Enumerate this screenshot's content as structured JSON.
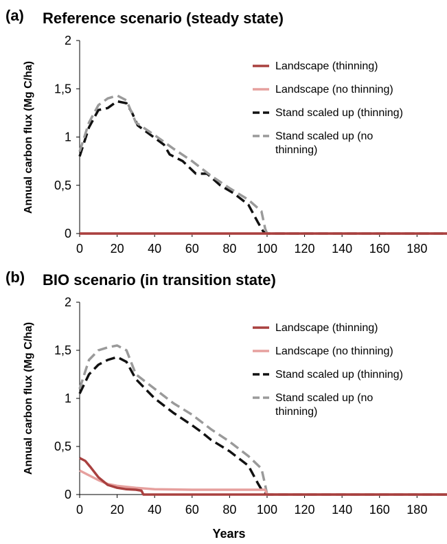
{
  "chart_data": [
    {
      "type": "line",
      "panel_label": "(a)",
      "title": "Reference scenario (steady state)",
      "ylabel": "Annual carbon flux (Mg C/ha)",
      "xlabel": "",
      "xlim": [
        0,
        196
      ],
      "ylim": [
        0,
        2
      ],
      "xticks": [
        0,
        20,
        40,
        60,
        80,
        100,
        120,
        140,
        160,
        180
      ],
      "yticks": [
        0,
        0.5,
        1,
        1.5,
        2
      ],
      "ytick_labels": [
        "0",
        "0,5",
        "1",
        "1,5",
        "2"
      ],
      "grid": false,
      "legend_position": "top-right",
      "series": [
        {
          "name": "Landscape (thinning)",
          "color": "#a9403f",
          "dash": "solid",
          "points": [
            [
              0,
              0
            ],
            [
              196,
              0
            ]
          ]
        },
        {
          "name": "Landscape (no thinning)",
          "color": "#e6a09e",
          "dash": "solid",
          "points": [
            [
              0,
              0
            ],
            [
              196,
              0
            ]
          ]
        },
        {
          "name": "Stand scaled up (thinning)",
          "color": "#111111",
          "dash": "dashed",
          "points": [
            [
              0,
              0.8
            ],
            [
              5,
              1.1
            ],
            [
              10,
              1.28
            ],
            [
              15,
              1.3
            ],
            [
              20,
              1.37
            ],
            [
              25,
              1.35
            ],
            [
              28,
              1.25
            ],
            [
              31,
              1.12
            ],
            [
              38,
              1.02
            ],
            [
              45,
              0.92
            ],
            [
              48,
              0.82
            ],
            [
              55,
              0.75
            ],
            [
              62,
              0.62
            ],
            [
              68,
              0.62
            ],
            [
              75,
              0.5
            ],
            [
              82,
              0.42
            ],
            [
              90,
              0.3
            ],
            [
              95,
              0.12
            ],
            [
              98,
              0.02
            ],
            [
              100,
              0
            ],
            [
              196,
              0
            ]
          ]
        },
        {
          "name": "Stand scaled up (no thinning)",
          "color": "#9a9a9a",
          "dash": "dashed",
          "points": [
            [
              0,
              0.85
            ],
            [
              5,
              1.15
            ],
            [
              10,
              1.33
            ],
            [
              15,
              1.4
            ],
            [
              20,
              1.43
            ],
            [
              25,
              1.38
            ],
            [
              30,
              1.15
            ],
            [
              40,
              1.02
            ],
            [
              50,
              0.88
            ],
            [
              60,
              0.75
            ],
            [
              70,
              0.6
            ],
            [
              80,
              0.47
            ],
            [
              90,
              0.35
            ],
            [
              97,
              0.23
            ],
            [
              99,
              0.05
            ],
            [
              100,
              0
            ],
            [
              196,
              0
            ]
          ]
        }
      ]
    },
    {
      "type": "line",
      "panel_label": "(b)",
      "title": "BIO scenario (in transition state)",
      "ylabel": "Annual carbon flux (Mg C/ha)",
      "xlabel": "Years",
      "xlim": [
        0,
        196
      ],
      "ylim": [
        0,
        2
      ],
      "xticks": [
        0,
        20,
        40,
        60,
        80,
        100,
        120,
        140,
        160,
        180
      ],
      "yticks": [
        0,
        0.5,
        1,
        1.5,
        2
      ],
      "ytick_labels": [
        "0",
        "0,5",
        "1",
        "1,5",
        "2"
      ],
      "grid": false,
      "legend_position": "top-right",
      "series": [
        {
          "name": "Landscape (thinning)",
          "color": "#a9403f",
          "dash": "solid",
          "points": [
            [
              0,
              0.38
            ],
            [
              3,
              0.35
            ],
            [
              6,
              0.28
            ],
            [
              10,
              0.18
            ],
            [
              15,
              0.1
            ],
            [
              20,
              0.07
            ],
            [
              25,
              0.055
            ],
            [
              30,
              0.05
            ],
            [
              33,
              0.04
            ],
            [
              34,
              0
            ],
            [
              196,
              0
            ]
          ]
        },
        {
          "name": "Landscape (no thinning)",
          "color": "#e6a09e",
          "dash": "solid",
          "points": [
            [
              0,
              0.25
            ],
            [
              5,
              0.2
            ],
            [
              10,
              0.15
            ],
            [
              15,
              0.11
            ],
            [
              20,
              0.09
            ],
            [
              30,
              0.07
            ],
            [
              40,
              0.055
            ],
            [
              60,
              0.05
            ],
            [
              80,
              0.05
            ],
            [
              99,
              0.05
            ],
            [
              100,
              0
            ],
            [
              196,
              0
            ]
          ]
        },
        {
          "name": "Stand scaled up (thinning)",
          "color": "#111111",
          "dash": "dashed",
          "points": [
            [
              0,
              1.05
            ],
            [
              5,
              1.25
            ],
            [
              10,
              1.35
            ],
            [
              15,
              1.4
            ],
            [
              20,
              1.43
            ],
            [
              25,
              1.38
            ],
            [
              30,
              1.2
            ],
            [
              40,
              1.0
            ],
            [
              50,
              0.85
            ],
            [
              60,
              0.72
            ],
            [
              65,
              0.65
            ],
            [
              70,
              0.57
            ],
            [
              80,
              0.45
            ],
            [
              90,
              0.3
            ],
            [
              95,
              0.12
            ],
            [
              98,
              0.02
            ],
            [
              100,
              0
            ],
            [
              196,
              0
            ]
          ]
        },
        {
          "name": "Stand scaled up (no thinning)",
          "color": "#9a9a9a",
          "dash": "dashed",
          "points": [
            [
              0,
              1.1
            ],
            [
              5,
              1.4
            ],
            [
              10,
              1.5
            ],
            [
              15,
              1.53
            ],
            [
              20,
              1.55
            ],
            [
              25,
              1.5
            ],
            [
              30,
              1.25
            ],
            [
              40,
              1.1
            ],
            [
              50,
              0.95
            ],
            [
              60,
              0.83
            ],
            [
              70,
              0.68
            ],
            [
              80,
              0.55
            ],
            [
              90,
              0.4
            ],
            [
              97,
              0.27
            ],
            [
              99,
              0.1
            ],
            [
              100,
              0
            ],
            [
              196,
              0
            ]
          ]
        }
      ]
    }
  ]
}
